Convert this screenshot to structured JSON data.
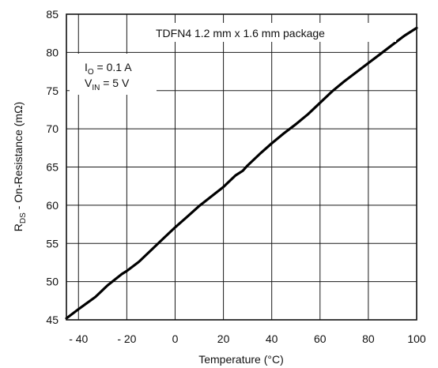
{
  "chart_data": {
    "type": "line",
    "xlabel": "Temperature (°C)",
    "ylabel": {
      "main": "R",
      "sub": "DS",
      "rest": " - On-Resistance (mΩ)"
    },
    "xlim": [
      -45,
      100
    ],
    "ylim": [
      45,
      85
    ],
    "x_ticks": [
      -40,
      -20,
      0,
      20,
      40,
      60,
      80,
      100
    ],
    "x_tick_labels": [
      "- 40",
      "- 20",
      "0",
      "20",
      "40",
      "60",
      "80",
      "100"
    ],
    "y_ticks": [
      45,
      50,
      55,
      60,
      65,
      70,
      75,
      80,
      85
    ],
    "y_tick_labels": [
      "45",
      "50",
      "55",
      "60",
      "65",
      "70",
      "75",
      "80",
      "85"
    ],
    "grid": true,
    "annotations": {
      "package": "TDFN4 1.2 mm x 1.6 mm package",
      "io": {
        "main": "I",
        "sub": "O",
        "rest": " = 0.1 A"
      },
      "vin": {
        "main": "V",
        "sub": "IN",
        "rest": " = 5 V"
      }
    },
    "series": [
      {
        "x": [
          -45,
          -40,
          -33,
          -28,
          -22,
          -20,
          -15,
          -10,
          -5,
          0,
          5,
          10,
          20,
          25,
          28,
          30,
          35,
          40,
          45,
          50,
          55,
          60,
          65,
          70,
          75,
          80,
          85,
          90,
          95,
          100
        ],
        "y": [
          45.2,
          46.4,
          48.0,
          49.5,
          51.0,
          51.4,
          52.6,
          54.1,
          55.6,
          57.1,
          58.5,
          59.9,
          62.4,
          63.9,
          64.5,
          65.2,
          66.7,
          68.1,
          69.4,
          70.6,
          71.9,
          73.4,
          74.9,
          76.2,
          77.4,
          78.6,
          79.8,
          81.0,
          82.2,
          83.2
        ]
      }
    ]
  }
}
